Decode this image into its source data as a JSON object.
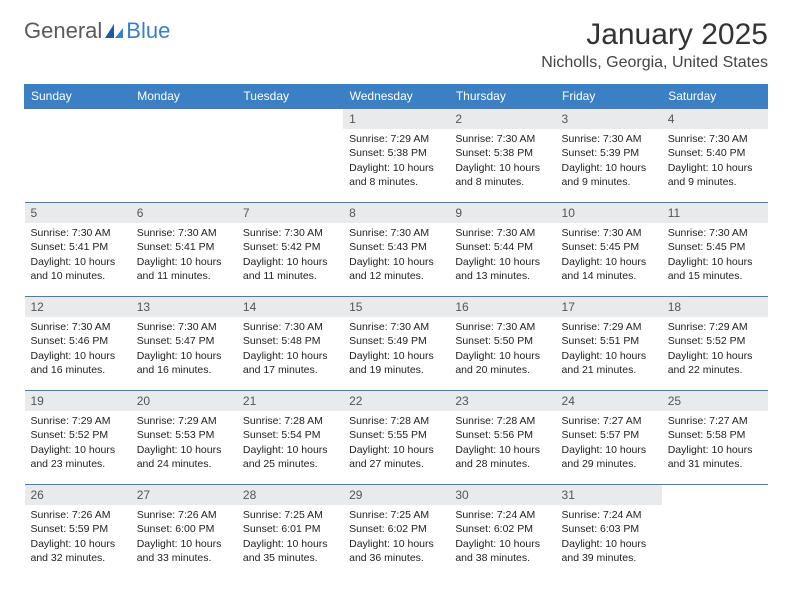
{
  "logo": {
    "text1": "General",
    "text2": "Blue"
  },
  "title": "January 2025",
  "location": "Nicholls, Georgia, United States",
  "colors": {
    "header_bg": "#3b7fc4",
    "header_text": "#ffffff",
    "daynum_bg": "#e8eaec",
    "border": "#3b7fc4",
    "body_text": "#333333",
    "background": "#ffffff"
  },
  "weekdays": [
    "Sunday",
    "Monday",
    "Tuesday",
    "Wednesday",
    "Thursday",
    "Friday",
    "Saturday"
  ],
  "weeks": [
    [
      null,
      null,
      null,
      {
        "n": "1",
        "sunrise": "7:29 AM",
        "sunset": "5:38 PM",
        "daylight": "10 hours and 8 minutes."
      },
      {
        "n": "2",
        "sunrise": "7:30 AM",
        "sunset": "5:38 PM",
        "daylight": "10 hours and 8 minutes."
      },
      {
        "n": "3",
        "sunrise": "7:30 AM",
        "sunset": "5:39 PM",
        "daylight": "10 hours and 9 minutes."
      },
      {
        "n": "4",
        "sunrise": "7:30 AM",
        "sunset": "5:40 PM",
        "daylight": "10 hours and 9 minutes."
      }
    ],
    [
      {
        "n": "5",
        "sunrise": "7:30 AM",
        "sunset": "5:41 PM",
        "daylight": "10 hours and 10 minutes."
      },
      {
        "n": "6",
        "sunrise": "7:30 AM",
        "sunset": "5:41 PM",
        "daylight": "10 hours and 11 minutes."
      },
      {
        "n": "7",
        "sunrise": "7:30 AM",
        "sunset": "5:42 PM",
        "daylight": "10 hours and 11 minutes."
      },
      {
        "n": "8",
        "sunrise": "7:30 AM",
        "sunset": "5:43 PM",
        "daylight": "10 hours and 12 minutes."
      },
      {
        "n": "9",
        "sunrise": "7:30 AM",
        "sunset": "5:44 PM",
        "daylight": "10 hours and 13 minutes."
      },
      {
        "n": "10",
        "sunrise": "7:30 AM",
        "sunset": "5:45 PM",
        "daylight": "10 hours and 14 minutes."
      },
      {
        "n": "11",
        "sunrise": "7:30 AM",
        "sunset": "5:45 PM",
        "daylight": "10 hours and 15 minutes."
      }
    ],
    [
      {
        "n": "12",
        "sunrise": "7:30 AM",
        "sunset": "5:46 PM",
        "daylight": "10 hours and 16 minutes."
      },
      {
        "n": "13",
        "sunrise": "7:30 AM",
        "sunset": "5:47 PM",
        "daylight": "10 hours and 16 minutes."
      },
      {
        "n": "14",
        "sunrise": "7:30 AM",
        "sunset": "5:48 PM",
        "daylight": "10 hours and 17 minutes."
      },
      {
        "n": "15",
        "sunrise": "7:30 AM",
        "sunset": "5:49 PM",
        "daylight": "10 hours and 19 minutes."
      },
      {
        "n": "16",
        "sunrise": "7:30 AM",
        "sunset": "5:50 PM",
        "daylight": "10 hours and 20 minutes."
      },
      {
        "n": "17",
        "sunrise": "7:29 AM",
        "sunset": "5:51 PM",
        "daylight": "10 hours and 21 minutes."
      },
      {
        "n": "18",
        "sunrise": "7:29 AM",
        "sunset": "5:52 PM",
        "daylight": "10 hours and 22 minutes."
      }
    ],
    [
      {
        "n": "19",
        "sunrise": "7:29 AM",
        "sunset": "5:52 PM",
        "daylight": "10 hours and 23 minutes."
      },
      {
        "n": "20",
        "sunrise": "7:29 AM",
        "sunset": "5:53 PM",
        "daylight": "10 hours and 24 minutes."
      },
      {
        "n": "21",
        "sunrise": "7:28 AM",
        "sunset": "5:54 PM",
        "daylight": "10 hours and 25 minutes."
      },
      {
        "n": "22",
        "sunrise": "7:28 AM",
        "sunset": "5:55 PM",
        "daylight": "10 hours and 27 minutes."
      },
      {
        "n": "23",
        "sunrise": "7:28 AM",
        "sunset": "5:56 PM",
        "daylight": "10 hours and 28 minutes."
      },
      {
        "n": "24",
        "sunrise": "7:27 AM",
        "sunset": "5:57 PM",
        "daylight": "10 hours and 29 minutes."
      },
      {
        "n": "25",
        "sunrise": "7:27 AM",
        "sunset": "5:58 PM",
        "daylight": "10 hours and 31 minutes."
      }
    ],
    [
      {
        "n": "26",
        "sunrise": "7:26 AM",
        "sunset": "5:59 PM",
        "daylight": "10 hours and 32 minutes."
      },
      {
        "n": "27",
        "sunrise": "7:26 AM",
        "sunset": "6:00 PM",
        "daylight": "10 hours and 33 minutes."
      },
      {
        "n": "28",
        "sunrise": "7:25 AM",
        "sunset": "6:01 PM",
        "daylight": "10 hours and 35 minutes."
      },
      {
        "n": "29",
        "sunrise": "7:25 AM",
        "sunset": "6:02 PM",
        "daylight": "10 hours and 36 minutes."
      },
      {
        "n": "30",
        "sunrise": "7:24 AM",
        "sunset": "6:02 PM",
        "daylight": "10 hours and 38 minutes."
      },
      {
        "n": "31",
        "sunrise": "7:24 AM",
        "sunset": "6:03 PM",
        "daylight": "10 hours and 39 minutes."
      },
      null
    ]
  ],
  "labels": {
    "sunrise": "Sunrise:",
    "sunset": "Sunset:",
    "daylight": "Daylight:"
  }
}
